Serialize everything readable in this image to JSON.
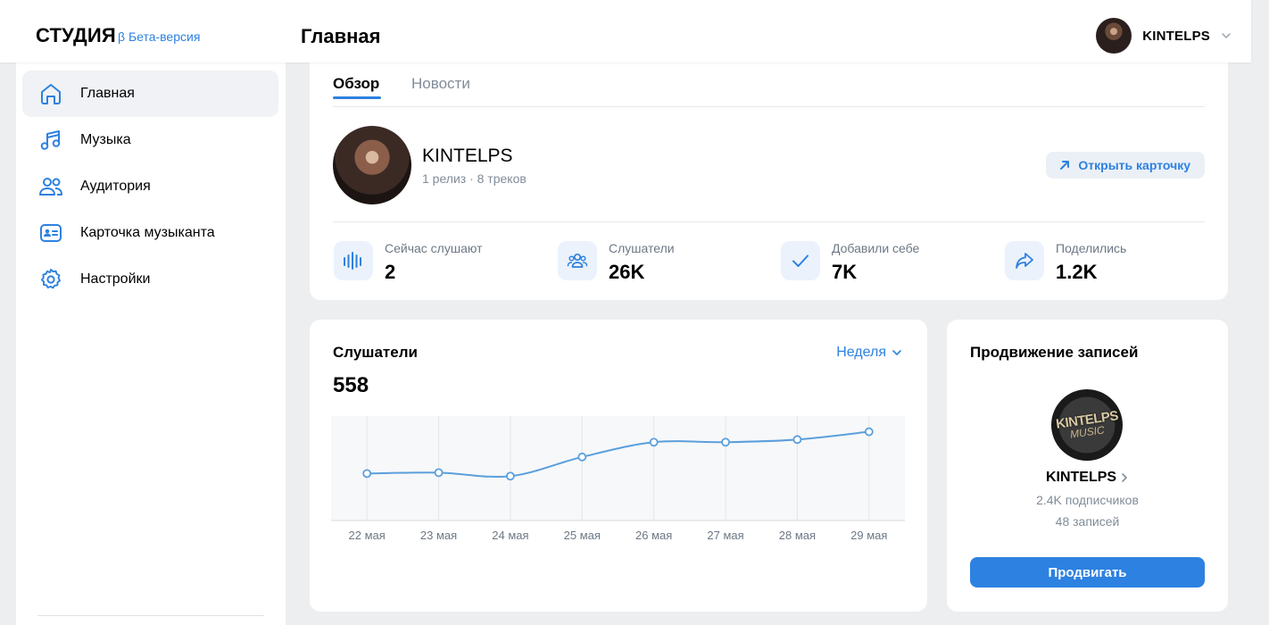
{
  "header": {
    "logo": "СТУДИЯ",
    "beta": "β Бета-версия",
    "page_title": "Главная",
    "user_name": "KINTELPS"
  },
  "sidebar": {
    "items": [
      {
        "label": "Главная",
        "icon": "home-icon",
        "active": true
      },
      {
        "label": "Музыка",
        "icon": "music-note-icon"
      },
      {
        "label": "Аудитория",
        "icon": "users-icon"
      },
      {
        "label": "Карточка музыканта",
        "icon": "id-card-icon"
      },
      {
        "label": "Настройки",
        "icon": "gear-icon"
      }
    ]
  },
  "overview": {
    "tabs": [
      {
        "label": "Обзор",
        "active": true
      },
      {
        "label": "Новости"
      }
    ],
    "artist_name": "KINTELPS",
    "artist_sub": "1 релиз · 8 треков",
    "open_card_label": "Открыть карточку",
    "stats": [
      {
        "label": "Сейчас слушают",
        "value": "2",
        "icon": "equalizer-icon"
      },
      {
        "label": "Слушатели",
        "value": "26K",
        "icon": "users-icon"
      },
      {
        "label": "Добавили себе",
        "value": "7K",
        "icon": "check-icon"
      },
      {
        "label": "Поделились",
        "value": "1.2K",
        "icon": "share-icon"
      }
    ]
  },
  "listeners": {
    "title": "Слушатели",
    "value": "558",
    "period": "Неделя"
  },
  "chart_data": {
    "type": "line",
    "categories": [
      "22 мая",
      "23 мая",
      "24 мая",
      "25 мая",
      "26 мая",
      "27 мая",
      "28 мая",
      "29 мая"
    ],
    "values": [
      54,
      55,
      51,
      73,
      90,
      90,
      93,
      102
    ],
    "ylim": [
      0,
      120
    ],
    "grid": true,
    "color": "#5b9fdc"
  },
  "promo": {
    "title": "Продвижение записей",
    "logo_text": "KINTELPS",
    "logo_sub": "MUSIC",
    "name": "KINTELPS",
    "subscribers": "2.4K подписчиков",
    "posts": "48 записей",
    "button": "Продвигать"
  }
}
